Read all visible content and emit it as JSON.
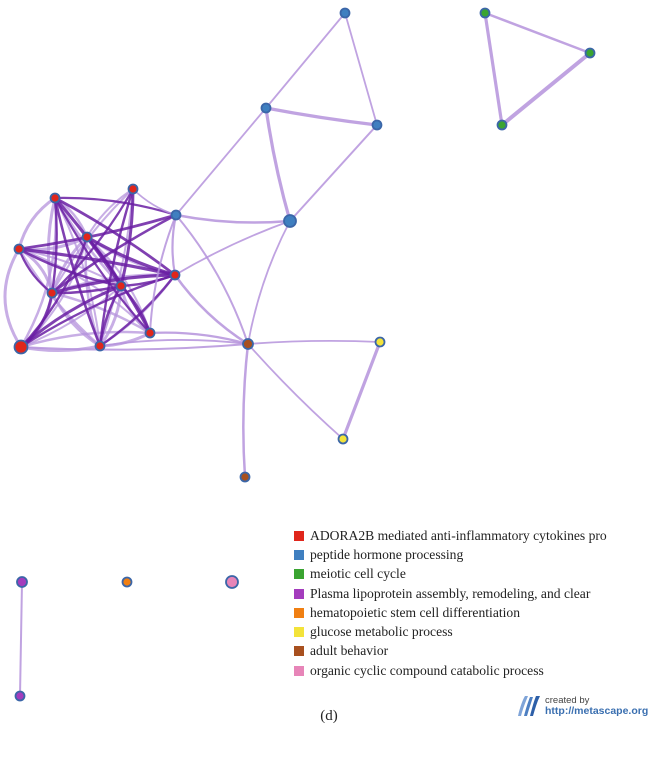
{
  "figure": {
    "caption": "(d)"
  },
  "colors": {
    "edge_light": "#b593dc",
    "edge_dark": "#6a1fa3",
    "node_border": "#3b66a8"
  },
  "legend": {
    "items": [
      {
        "label": "ADORA2B mediated anti-inflammatory cytokines pro",
        "color": "#e0261b"
      },
      {
        "label": "peptide hormone processing",
        "color": "#3f7fc0"
      },
      {
        "label": "meiotic cell cycle",
        "color": "#3aa431"
      },
      {
        "label": "Plasma lipoprotein assembly, remodeling, and clear",
        "color": "#a43cbd"
      },
      {
        "label": "hematopoietic stem cell differentiation",
        "color": "#f07f12"
      },
      {
        "label": "glucose metabolic process",
        "color": "#f3e33a"
      },
      {
        "label": "adult behavior",
        "color": "#a8501f"
      },
      {
        "label": "organic cyclic compound catabolic process",
        "color": "#e785b8"
      }
    ]
  },
  "credit": {
    "line1": "created by",
    "line2": "http://metascape.org"
  }
}
